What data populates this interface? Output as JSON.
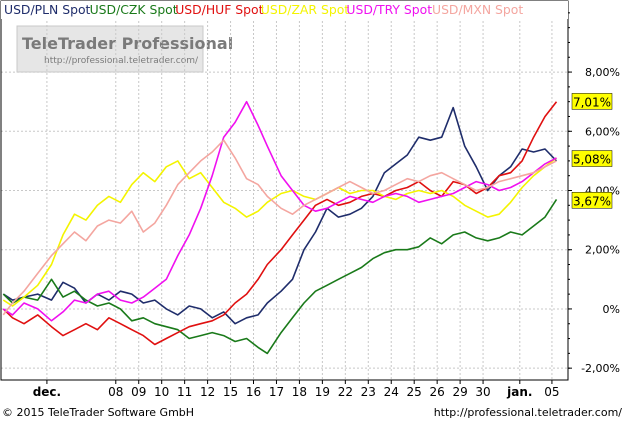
{
  "chart_data": {
    "type": "line",
    "title": "",
    "xlabel": "",
    "ylabel": "",
    "ylim": [
      -2.4,
      10.4
    ],
    "y_ticks": [
      -2,
      0,
      2,
      4,
      6,
      8
    ],
    "y_tick_labels": [
      "-2,00%",
      "0%",
      "2,00%",
      "4,00%",
      "6,00%",
      "8,00%"
    ],
    "grid": true,
    "legend_position": "top-left",
    "x_ticks": [
      {
        "x": 2.0,
        "label": "dec."
      },
      {
        "x": 5.0,
        "label": "08"
      },
      {
        "x": 6.0,
        "label": "09"
      },
      {
        "x": 7.0,
        "label": "10"
      },
      {
        "x": 8.0,
        "label": "11"
      },
      {
        "x": 9.0,
        "label": "12"
      },
      {
        "x": 10.0,
        "label": "15"
      },
      {
        "x": 11.0,
        "label": "16"
      },
      {
        "x": 12.0,
        "label": "17"
      },
      {
        "x": 13.0,
        "label": "18"
      },
      {
        "x": 14.0,
        "label": "19"
      },
      {
        "x": 15.0,
        "label": "22"
      },
      {
        "x": 16.0,
        "label": "23"
      },
      {
        "x": 17.0,
        "label": "24"
      },
      {
        "x": 18.0,
        "label": "25"
      },
      {
        "x": 19.0,
        "label": "26"
      },
      {
        "x": 20.0,
        "label": "29"
      },
      {
        "x": 21.0,
        "label": "30"
      },
      {
        "x": 22.6,
        "label": "jan."
      },
      {
        "x": 24.0,
        "label": "05"
      }
    ],
    "xlim": [
      0,
      24.7
    ],
    "series": [
      {
        "name": "USD/PLN Spot",
        "color": "#1f2d6b",
        "x": [
          0.1,
          0.5,
          1.0,
          1.6,
          2.2,
          2.7,
          3.2,
          3.7,
          4.2,
          4.7,
          5.2,
          5.7,
          6.2,
          6.7,
          7.2,
          7.7,
          8.2,
          8.7,
          9.2,
          9.7,
          10.2,
          10.7,
          11.2,
          11.6,
          12.2,
          12.7,
          13.2,
          13.7,
          14.2,
          14.7,
          15.2,
          15.7,
          16.2,
          16.7,
          17.2,
          17.7,
          18.2,
          18.7,
          19.2,
          19.7,
          20.2,
          20.7,
          21.2,
          21.7,
          22.2,
          22.7,
          23.2,
          23.7,
          24.2
        ],
        "y": [
          0.5,
          0.3,
          0.4,
          0.5,
          0.3,
          0.9,
          0.7,
          0.2,
          0.5,
          0.3,
          0.6,
          0.5,
          0.2,
          0.3,
          0.0,
          -0.2,
          0.1,
          0.0,
          -0.3,
          -0.1,
          -0.5,
          -0.3,
          -0.2,
          0.2,
          0.6,
          1.0,
          2.0,
          2.6,
          3.4,
          3.1,
          3.2,
          3.4,
          3.8,
          4.6,
          4.9,
          5.2,
          5.8,
          5.7,
          5.8,
          6.8,
          5.5,
          4.8,
          4.0,
          4.5,
          4.8,
          5.4,
          5.3,
          5.4,
          5.0
        ]
      },
      {
        "name": "USD/CZK Spot",
        "color": "#1a7a1a",
        "x": [
          0.1,
          0.5,
          1.0,
          1.6,
          2.2,
          2.7,
          3.2,
          3.7,
          4.2,
          4.7,
          5.2,
          5.7,
          6.2,
          6.7,
          7.2,
          7.7,
          8.2,
          8.7,
          9.2,
          9.7,
          10.2,
          10.7,
          11.2,
          11.6,
          12.2,
          12.7,
          13.2,
          13.7,
          14.2,
          14.7,
          15.2,
          15.7,
          16.2,
          16.7,
          17.2,
          17.7,
          18.2,
          18.7,
          19.2,
          19.7,
          20.2,
          20.7,
          21.2,
          21.7,
          22.2,
          22.7,
          23.2,
          23.7,
          24.2
        ],
        "y": [
          0.5,
          0.2,
          0.4,
          0.3,
          1.0,
          0.4,
          0.6,
          0.3,
          0.1,
          0.2,
          0.0,
          -0.4,
          -0.3,
          -0.5,
          -0.6,
          -0.7,
          -1.0,
          -0.9,
          -0.8,
          -0.9,
          -1.1,
          -1.0,
          -1.3,
          -1.5,
          -0.8,
          -0.3,
          0.2,
          0.6,
          0.8,
          1.0,
          1.2,
          1.4,
          1.7,
          1.9,
          2.0,
          2.0,
          2.1,
          2.4,
          2.2,
          2.5,
          2.6,
          2.4,
          2.3,
          2.4,
          2.6,
          2.5,
          2.8,
          3.1,
          3.7
        ]
      },
      {
        "name": "USD/HUF Spot",
        "color": "#e01010",
        "x": [
          0.1,
          0.5,
          1.0,
          1.6,
          2.2,
          2.7,
          3.2,
          3.7,
          4.2,
          4.7,
          5.2,
          5.7,
          6.2,
          6.7,
          7.2,
          7.7,
          8.2,
          8.7,
          9.2,
          9.7,
          10.2,
          10.7,
          11.2,
          11.6,
          12.2,
          12.7,
          13.2,
          13.7,
          14.2,
          14.7,
          15.2,
          15.7,
          16.2,
          16.7,
          17.2,
          17.7,
          18.2,
          18.7,
          19.2,
          19.7,
          20.2,
          20.7,
          21.2,
          21.7,
          22.2,
          22.7,
          23.2,
          23.7,
          24.2
        ],
        "y": [
          0.0,
          -0.3,
          -0.5,
          -0.2,
          -0.6,
          -0.9,
          -0.7,
          -0.5,
          -0.7,
          -0.3,
          -0.5,
          -0.7,
          -0.9,
          -1.2,
          -1.0,
          -0.8,
          -0.6,
          -0.5,
          -0.4,
          -0.2,
          0.2,
          0.5,
          1.0,
          1.5,
          2.0,
          2.5,
          3.0,
          3.5,
          3.7,
          3.5,
          3.6,
          3.8,
          3.9,
          3.8,
          4.0,
          4.1,
          4.3,
          4.0,
          3.8,
          4.3,
          4.2,
          3.9,
          4.1,
          4.5,
          4.6,
          5.0,
          5.8,
          6.5,
          7.0
        ]
      },
      {
        "name": "USD/ZAR Spot",
        "color": "#f4f400",
        "x": [
          0.1,
          0.5,
          1.0,
          1.6,
          2.2,
          2.7,
          3.2,
          3.7,
          4.2,
          4.7,
          5.2,
          5.7,
          6.2,
          6.7,
          7.2,
          7.7,
          8.2,
          8.7,
          9.2,
          9.7,
          10.2,
          10.7,
          11.2,
          11.6,
          12.2,
          12.7,
          13.2,
          13.7,
          14.2,
          14.7,
          15.2,
          15.7,
          16.2,
          16.7,
          17.2,
          17.7,
          18.2,
          18.7,
          19.2,
          19.7,
          20.2,
          20.7,
          21.2,
          21.7,
          22.2,
          22.7,
          23.2,
          23.7,
          24.2
        ],
        "y": [
          0.3,
          0.1,
          0.4,
          0.8,
          1.5,
          2.5,
          3.2,
          3.0,
          3.5,
          3.8,
          3.6,
          4.2,
          4.6,
          4.3,
          4.8,
          5.0,
          4.4,
          4.6,
          4.1,
          3.6,
          3.4,
          3.1,
          3.3,
          3.6,
          3.9,
          4.0,
          3.8,
          3.7,
          3.9,
          4.1,
          3.9,
          4.0,
          4.0,
          3.8,
          3.7,
          3.9,
          4.0,
          3.9,
          4.0,
          3.8,
          3.5,
          3.3,
          3.1,
          3.2,
          3.6,
          4.1,
          4.5,
          4.8,
          5.1
        ]
      },
      {
        "name": "USD/TRY Spot",
        "color": "#f010f0",
        "x": [
          0.1,
          0.5,
          1.0,
          1.6,
          2.2,
          2.7,
          3.2,
          3.7,
          4.2,
          4.7,
          5.2,
          5.7,
          6.2,
          6.7,
          7.2,
          7.7,
          8.2,
          8.7,
          9.2,
          9.7,
          10.2,
          10.7,
          11.2,
          11.6,
          12.2,
          12.7,
          13.2,
          13.7,
          14.2,
          14.7,
          15.2,
          15.7,
          16.2,
          16.7,
          17.2,
          17.7,
          18.2,
          18.7,
          19.2,
          19.7,
          20.2,
          20.7,
          21.2,
          21.7,
          22.2,
          22.7,
          23.2,
          23.7,
          24.2
        ],
        "y": [
          0.0,
          -0.2,
          0.2,
          0.0,
          -0.4,
          -0.1,
          0.3,
          0.2,
          0.5,
          0.6,
          0.3,
          0.2,
          0.4,
          0.7,
          1.0,
          1.8,
          2.5,
          3.4,
          4.5,
          5.8,
          6.3,
          7.0,
          6.2,
          5.5,
          4.5,
          4.0,
          3.5,
          3.3,
          3.4,
          3.6,
          3.8,
          3.7,
          3.6,
          3.8,
          3.9,
          3.8,
          3.6,
          3.7,
          3.8,
          3.9,
          4.1,
          4.3,
          4.2,
          4.0,
          4.1,
          4.3,
          4.6,
          4.9,
          5.1
        ]
      },
      {
        "name": "USD/MXN Spot",
        "color": "#f4a6a0",
        "x": [
          0.1,
          0.5,
          1.0,
          1.6,
          2.2,
          2.7,
          3.2,
          3.7,
          4.2,
          4.7,
          5.2,
          5.7,
          6.2,
          6.7,
          7.2,
          7.7,
          8.2,
          8.7,
          9.2,
          9.7,
          10.2,
          10.7,
          11.2,
          11.6,
          12.2,
          12.7,
          13.2,
          13.7,
          14.2,
          14.7,
          15.2,
          15.7,
          16.2,
          16.7,
          17.2,
          17.7,
          18.2,
          18.7,
          19.2,
          19.7,
          20.2,
          20.7,
          21.2,
          21.7,
          22.2,
          22.7,
          23.2,
          23.7,
          24.2
        ],
        "y": [
          -0.2,
          0.2,
          0.6,
          1.2,
          1.8,
          2.2,
          2.6,
          2.3,
          2.8,
          3.0,
          2.9,
          3.3,
          2.6,
          2.9,
          3.5,
          4.2,
          4.6,
          5.0,
          5.3,
          5.7,
          5.1,
          4.4,
          4.2,
          3.8,
          3.4,
          3.2,
          3.5,
          3.7,
          3.9,
          4.1,
          4.3,
          4.1,
          3.9,
          4.0,
          4.2,
          4.4,
          4.3,
          4.5,
          4.6,
          4.4,
          4.2,
          4.0,
          4.1,
          4.3,
          4.4,
          4.5,
          4.6,
          4.8,
          5.0
        ]
      }
    ],
    "value_labels": [
      {
        "label": "7,01%",
        "value": 7.01,
        "color": "#e01010"
      },
      {
        "label": "5,08%",
        "value": 5.08,
        "color": "#f010f0"
      },
      {
        "label": "3,67%",
        "value": 3.67,
        "color": "#1a7a1a"
      }
    ]
  },
  "watermark": {
    "brand": "TeleTrader Professional",
    "url": "http://professional.teletrader.com/"
  },
  "footer": {
    "copyright": "© 2015 TeleTrader Software GmbH",
    "url": "http://professional.teletrader.com/"
  },
  "colors": {
    "axis": "#000000",
    "grid": "#c8c8c8",
    "label_bg": "#ffff00",
    "footer_bg": "#f0f0f0"
  }
}
